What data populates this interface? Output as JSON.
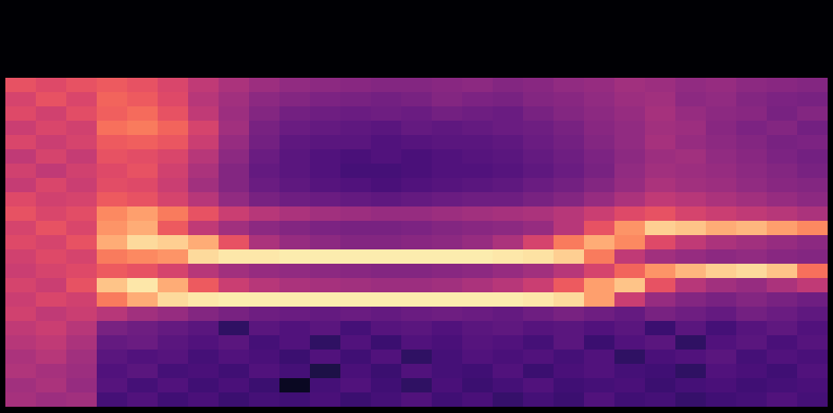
{
  "chart_data": {
    "type": "heatmap",
    "tick_labels": false,
    "color": "magma",
    "color_range": [
      -80,
      0
    ],
    "cells": [
      [
        -80,
        -80,
        -80,
        -80,
        -80,
        -80,
        -80,
        -80,
        -80,
        -80,
        -80,
        -80,
        -80,
        -80,
        -80,
        -80,
        -80,
        -80,
        -80,
        -80,
        -80,
        -80,
        -80,
        -80,
        -80,
        -80,
        -80
      ],
      [
        -80,
        -80,
        -80,
        -80,
        -80,
        -80,
        -80,
        -80,
        -80,
        -80,
        -80,
        -80,
        -80,
        -80,
        -80,
        -80,
        -80,
        -80,
        -80,
        -80,
        -80,
        -80,
        -80,
        -80,
        -80,
        -80,
        -80
      ],
      [
        -80,
        -80,
        -80,
        -80,
        -80,
        -80,
        -80,
        -80,
        -80,
        -80,
        -80,
        -80,
        -80,
        -80,
        -80,
        -80,
        -80,
        -80,
        -80,
        -80,
        -80,
        -80,
        -80,
        -80,
        -80,
        -80,
        -80
      ],
      [
        -80,
        -80,
        -80,
        -80,
        -80,
        -80,
        -80,
        -80,
        -80,
        -80,
        -80,
        -80,
        -80,
        -80,
        -80,
        -80,
        -80,
        -80,
        -80,
        -80,
        -80,
        -80,
        -80,
        -80,
        -80,
        -80,
        -80
      ],
      [
        -80,
        -80,
        -80,
        -80,
        -80,
        -80,
        -80,
        -80,
        -80,
        -80,
        -80,
        -80,
        -80,
        -80,
        -80,
        -80,
        -80,
        -80,
        -80,
        -80,
        -80,
        -80,
        -80,
        -80,
        -80,
        -80,
        -80
      ],
      [
        -30,
        -32,
        -30,
        -28,
        -30,
        -33,
        -38,
        -42,
        -45,
        -47,
        -48,
        -49,
        -50,
        -50,
        -49,
        -48,
        -50,
        -49,
        -47,
        -46,
        -44,
        -45,
        -47,
        -46,
        -48,
        -49,
        -50
      ],
      [
        -34,
        -30,
        -33,
        -26,
        -28,
        -32,
        -40,
        -44,
        -48,
        -50,
        -51,
        -52,
        -53,
        -52,
        -50,
        -51,
        -52,
        -50,
        -49,
        -47,
        -45,
        -44,
        -48,
        -47,
        -50,
        -51,
        -52
      ],
      [
        -32,
        -35,
        -31,
        -27,
        -25,
        -30,
        -38,
        -45,
        -50,
        -53,
        -54,
        -55,
        -54,
        -55,
        -53,
        -54,
        -55,
        -52,
        -50,
        -48,
        -46,
        -43,
        -46,
        -48,
        -49,
        -52,
        -50
      ],
      [
        -36,
        -33,
        -35,
        -24,
        -22,
        -26,
        -34,
        -44,
        -52,
        -55,
        -56,
        -57,
        -58,
        -56,
        -57,
        -56,
        -55,
        -54,
        -52,
        -49,
        -47,
        -44,
        -45,
        -49,
        -51,
        -50,
        -53
      ],
      [
        -33,
        -36,
        -34,
        -28,
        -27,
        -29,
        -36,
        -46,
        -53,
        -57,
        -58,
        -58,
        -60,
        -59,
        -58,
        -58,
        -57,
        -55,
        -53,
        -50,
        -47,
        -43,
        -46,
        -48,
        -50,
        -52,
        -51
      ],
      [
        -38,
        -34,
        -37,
        -30,
        -31,
        -33,
        -40,
        -48,
        -55,
        -58,
        -60,
        -61,
        -60,
        -61,
        -60,
        -59,
        -58,
        -56,
        -54,
        -51,
        -48,
        -45,
        -44,
        -47,
        -49,
        -51,
        -53
      ],
      [
        -35,
        -38,
        -35,
        -32,
        -30,
        -35,
        -42,
        -50,
        -56,
        -58,
        -60,
        -62,
        -62,
        -61,
        -60,
        -60,
        -59,
        -57,
        -55,
        -52,
        -47,
        -44,
        -45,
        -46,
        -48,
        -50,
        -52
      ],
      [
        -37,
        -33,
        -36,
        -31,
        -32,
        -36,
        -44,
        -50,
        -55,
        -57,
        -59,
        -60,
        -61,
        -60,
        -59,
        -58,
        -57,
        -55,
        -53,
        -50,
        -46,
        -42,
        -44,
        -45,
        -47,
        -49,
        -50
      ],
      [
        -32,
        -35,
        -34,
        -28,
        -30,
        -34,
        -40,
        -47,
        -52,
        -54,
        -55,
        -56,
        -57,
        -56,
        -55,
        -54,
        -54,
        -52,
        -50,
        -46,
        -42,
        -38,
        -40,
        -42,
        -44,
        -46,
        -48
      ],
      [
        -30,
        -33,
        -31,
        -20,
        -16,
        -22,
        -30,
        -36,
        -40,
        -42,
        -44,
        -45,
        -46,
        -46,
        -45,
        -44,
        -43,
        -42,
        -40,
        -36,
        -32,
        -30,
        -34,
        -36,
        -38,
        -40,
        -42
      ],
      [
        -34,
        -30,
        -33,
        -18,
        -14,
        -28,
        -38,
        -44,
        -48,
        -50,
        -51,
        -52,
        -52,
        -51,
        -50,
        -49,
        -48,
        -46,
        -40,
        -30,
        -18,
        -8,
        -10,
        -14,
        -12,
        -16,
        -20
      ],
      [
        -32,
        -34,
        -30,
        -14,
        -6,
        -8,
        -14,
        -30,
        -42,
        -46,
        -48,
        -50,
        -50,
        -49,
        -48,
        -46,
        -42,
        -34,
        -22,
        -14,
        -20,
        -32,
        -38,
        -42,
        -44,
        -46,
        -48
      ],
      [
        -35,
        -32,
        -34,
        -22,
        -20,
        -18,
        -6,
        -4,
        -4,
        -3,
        -3,
        -3,
        -3,
        -3,
        -3,
        -3,
        -4,
        -5,
        -8,
        -22,
        -38,
        -44,
        -46,
        -48,
        -47,
        -49,
        -50
      ],
      [
        -36,
        -34,
        -32,
        -28,
        -30,
        -34,
        -40,
        -44,
        -46,
        -47,
        -48,
        -49,
        -50,
        -50,
        -49,
        -48,
        -46,
        -44,
        -40,
        -34,
        -26,
        -18,
        -12,
        -8,
        -6,
        -10,
        -24
      ],
      [
        -34,
        -36,
        -30,
        -10,
        -4,
        -14,
        -28,
        -36,
        -40,
        -42,
        -43,
        -44,
        -45,
        -45,
        -44,
        -42,
        -40,
        -36,
        -28,
        -16,
        -10,
        -30,
        -40,
        -44,
        -46,
        -42,
        -38
      ],
      [
        -36,
        -33,
        -35,
        -22,
        -14,
        -6,
        -4,
        -3,
        -3,
        -3,
        -3,
        -3,
        -3,
        -3,
        -3,
        -3,
        -3,
        -4,
        -6,
        -16,
        -36,
        -46,
        -50,
        -52,
        -50,
        -52,
        -54
      ],
      [
        -35,
        -38,
        -36,
        -40,
        -44,
        -46,
        -50,
        -52,
        -54,
        -55,
        -56,
        -55,
        -56,
        -55,
        -54,
        -55,
        -56,
        -54,
        -52,
        -54,
        -56,
        -52,
        -54,
        -56,
        -53,
        -55,
        -57
      ],
      [
        -38,
        -36,
        -40,
        -52,
        -54,
        -56,
        -58,
        -66,
        -58,
        -60,
        -58,
        -62,
        -59,
        -58,
        -60,
        -58,
        -57,
        -59,
        -58,
        -60,
        -58,
        -64,
        -58,
        -62,
        -59,
        -57,
        -60
      ],
      [
        -40,
        -38,
        -42,
        -56,
        -55,
        -58,
        -60,
        -58,
        -62,
        -60,
        -66,
        -60,
        -64,
        -60,
        -61,
        -59,
        -60,
        -62,
        -58,
        -64,
        -60,
        -58,
        -66,
        -60,
        -58,
        -61,
        -59
      ],
      [
        -42,
        -40,
        -44,
        -58,
        -60,
        -59,
        -62,
        -60,
        -61,
        -64,
        -60,
        -63,
        -60,
        -66,
        -62,
        -60,
        -61,
        -60,
        -62,
        -60,
        -66,
        -61,
        -60,
        -58,
        -62,
        -60,
        -61
      ],
      [
        -41,
        -43,
        -45,
        -60,
        -58,
        -62,
        -61,
        -63,
        -60,
        -62,
        -70,
        -61,
        -64,
        -60,
        -62,
        -63,
        -60,
        -64,
        -61,
        -60,
        -62,
        -63,
        -66,
        -60,
        -61,
        -63,
        -60
      ],
      [
        -44,
        -42,
        -46,
        -59,
        -62,
        -60,
        -63,
        -61,
        -64,
        -75,
        -62,
        -60,
        -63,
        -66,
        -61,
        -64,
        -62,
        -60,
        -63,
        -62,
        -61,
        -64,
        -62,
        -61,
        -63,
        -62,
        -61
      ],
      [
        -43,
        -45,
        -44,
        -62,
        -60,
        -63,
        -61,
        -64,
        -62,
        -63,
        -61,
        -64,
        -62,
        -60,
        -63,
        -61,
        -65,
        -62,
        -64,
        -60,
        -63,
        -62,
        -65,
        -63,
        -62,
        -60,
        -62
      ]
    ]
  }
}
